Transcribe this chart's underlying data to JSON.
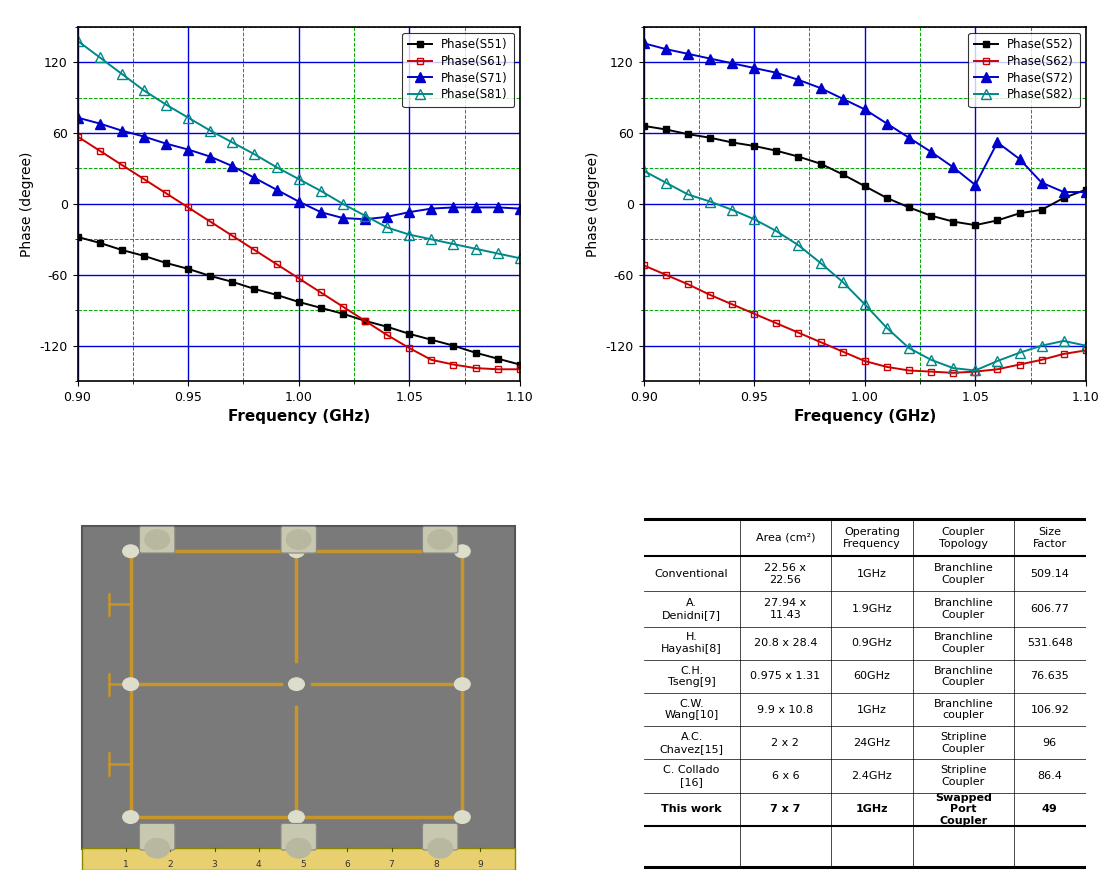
{
  "plot1": {
    "xlabel": "Frequency (GHz)",
    "ylabel": "Phase (degree)",
    "xlim": [
      0.9,
      1.1
    ],
    "ylim": [
      -150,
      150
    ],
    "yticks": [
      -120,
      -60,
      0,
      60,
      120
    ],
    "xticks": [
      0.9,
      0.95,
      1.0,
      1.05,
      1.1
    ],
    "series": [
      {
        "label": "Phase(S51)",
        "color": "#000000",
        "marker": "s",
        "fillstyle": "full",
        "x": [
          0.9,
          0.91,
          0.92,
          0.93,
          0.94,
          0.95,
          0.96,
          0.97,
          0.98,
          0.99,
          1.0,
          1.01,
          1.02,
          1.03,
          1.04,
          1.05,
          1.06,
          1.07,
          1.08,
          1.09,
          1.1
        ],
        "y": [
          -28,
          -33,
          -39,
          -44,
          -50,
          -55,
          -61,
          -66,
          -72,
          -77,
          -83,
          -88,
          -93,
          -99,
          -104,
          -110,
          -115,
          -120,
          -126,
          -131,
          -136
        ]
      },
      {
        "label": "Phase(S61)",
        "color": "#cc0000",
        "marker": "s",
        "fillstyle": "none",
        "x": [
          0.9,
          0.91,
          0.92,
          0.93,
          0.94,
          0.95,
          0.96,
          0.97,
          0.98,
          0.99,
          1.0,
          1.01,
          1.02,
          1.03,
          1.04,
          1.05,
          1.06,
          1.07,
          1.08,
          1.09,
          1.1
        ],
        "y": [
          57,
          45,
          33,
          21,
          9,
          -3,
          -15,
          -27,
          -39,
          -51,
          -63,
          -75,
          -87,
          -99,
          -111,
          -122,
          -132,
          -136,
          -139,
          -140,
          -140
        ]
      },
      {
        "label": "Phase(S71)",
        "color": "#0000cc",
        "marker": "^",
        "fillstyle": "full",
        "x": [
          0.9,
          0.91,
          0.92,
          0.93,
          0.94,
          0.95,
          0.96,
          0.97,
          0.98,
          0.99,
          1.0,
          1.01,
          1.02,
          1.03,
          1.04,
          1.05,
          1.06,
          1.07,
          1.08,
          1.09,
          1.1
        ],
        "y": [
          73,
          68,
          62,
          57,
          51,
          46,
          40,
          32,
          22,
          12,
          2,
          -7,
          -12,
          -13,
          -11,
          -7,
          -4,
          -3,
          -3,
          -3,
          -4
        ]
      },
      {
        "label": "Phase(S81)",
        "color": "#008888",
        "marker": "^",
        "fillstyle": "none",
        "x": [
          0.9,
          0.91,
          0.92,
          0.93,
          0.94,
          0.95,
          0.96,
          0.97,
          0.98,
          0.99,
          1.0,
          1.01,
          1.02,
          1.03,
          1.04,
          1.05,
          1.06,
          1.07,
          1.08,
          1.09,
          1.1
        ],
        "y": [
          138,
          124,
          110,
          96,
          84,
          73,
          62,
          52,
          42,
          31,
          21,
          11,
          0,
          -10,
          -20,
          -26,
          -30,
          -34,
          -38,
          -42,
          -46
        ]
      }
    ]
  },
  "plot2": {
    "xlabel": "Frequency (GHz)",
    "ylabel": "Phase (degree)",
    "xlim": [
      0.9,
      1.1
    ],
    "ylim": [
      -150,
      150
    ],
    "yticks": [
      -120,
      -60,
      0,
      60,
      120
    ],
    "xticks": [
      0.9,
      0.95,
      1.0,
      1.05,
      1.1
    ],
    "series": [
      {
        "label": "Phase(S52)",
        "color": "#000000",
        "marker": "s",
        "fillstyle": "full",
        "x": [
          0.9,
          0.91,
          0.92,
          0.93,
          0.94,
          0.95,
          0.96,
          0.97,
          0.98,
          0.99,
          1.0,
          1.01,
          1.02,
          1.03,
          1.04,
          1.05,
          1.06,
          1.07,
          1.08,
          1.09,
          1.1
        ],
        "y": [
          66,
          63,
          59,
          56,
          52,
          49,
          45,
          40,
          34,
          25,
          15,
          5,
          -3,
          -10,
          -15,
          -18,
          -14,
          -8,
          -5,
          5,
          12
        ]
      },
      {
        "label": "Phase(S62)",
        "color": "#cc0000",
        "marker": "s",
        "fillstyle": "none",
        "x": [
          0.9,
          0.91,
          0.92,
          0.93,
          0.94,
          0.95,
          0.96,
          0.97,
          0.98,
          0.99,
          1.0,
          1.01,
          1.02,
          1.03,
          1.04,
          1.05,
          1.06,
          1.07,
          1.08,
          1.09,
          1.1
        ],
        "y": [
          -52,
          -60,
          -68,
          -77,
          -85,
          -93,
          -101,
          -109,
          -117,
          -125,
          -133,
          -138,
          -141,
          -142,
          -143,
          -142,
          -140,
          -136,
          -132,
          -127,
          -124
        ]
      },
      {
        "label": "Phase(S72)",
        "color": "#0000cc",
        "marker": "^",
        "fillstyle": "full",
        "x": [
          0.9,
          0.91,
          0.92,
          0.93,
          0.94,
          0.95,
          0.96,
          0.97,
          0.98,
          0.99,
          1.0,
          1.01,
          1.02,
          1.03,
          1.04,
          1.05,
          1.06,
          1.07,
          1.08,
          1.09,
          1.1
        ],
        "y": [
          136,
          131,
          127,
          123,
          119,
          115,
          111,
          105,
          98,
          89,
          80,
          68,
          56,
          44,
          31,
          16,
          52,
          38,
          18,
          10,
          10
        ]
      },
      {
        "label": "Phase(S82)",
        "color": "#008888",
        "marker": "^",
        "fillstyle": "none",
        "x": [
          0.9,
          0.91,
          0.92,
          0.93,
          0.94,
          0.95,
          0.96,
          0.97,
          0.98,
          0.99,
          1.0,
          1.01,
          1.02,
          1.03,
          1.04,
          1.05,
          1.06,
          1.07,
          1.08,
          1.09,
          1.1
        ],
        "y": [
          28,
          18,
          8,
          2,
          -5,
          -13,
          -23,
          -35,
          -50,
          -66,
          -85,
          -105,
          -122,
          -132,
          -139,
          -141,
          -133,
          -126,
          -120,
          -116,
          -120
        ]
      }
    ]
  },
  "table": {
    "col_labels": [
      "",
      "Area (cm²)",
      "Operating\nFrequency",
      "Coupler\nTopology",
      "Size\nFactor"
    ],
    "rows": [
      [
        "Conventional",
        "22.56 x\n22.56",
        "1GHz",
        "Branchline\nCoupler",
        "509.14"
      ],
      [
        "A.\nDenidni[7]",
        "27.94 x\n11.43",
        "1.9GHz",
        "Branchline\nCoupler",
        "606.77"
      ],
      [
        "H.\nHayashi[8]",
        "20.8 x 28.4",
        "0.9GHz",
        "Branchline\nCoupler",
        "531.648"
      ],
      [
        "C.H.\nTseng[9]",
        "0.975 x 1.31",
        "60GHz",
        "Branchline\nCoupler",
        "76.635"
      ],
      [
        "C.W.\nWang[10]",
        "9.9 x 10.8",
        "1GHz",
        "Branchline\ncoupler",
        "106.92"
      ],
      [
        "A.C.\nChavez[15]",
        "2 x 2",
        "24GHz",
        "Stripline\nCoupler",
        "96"
      ],
      [
        "C. Collado\n[16]",
        "6 x 6",
        "2.4GHz",
        "Stripline\nCoupler",
        "86.4"
      ],
      [
        "This work",
        "7 x 7",
        "1GHz",
        "Swapped\nPort\nCoupler",
        "49"
      ]
    ]
  },
  "grid_major_color": "#0000dd",
  "grid_minor_color": "#00aa00",
  "plot_bg": "#ffffff"
}
